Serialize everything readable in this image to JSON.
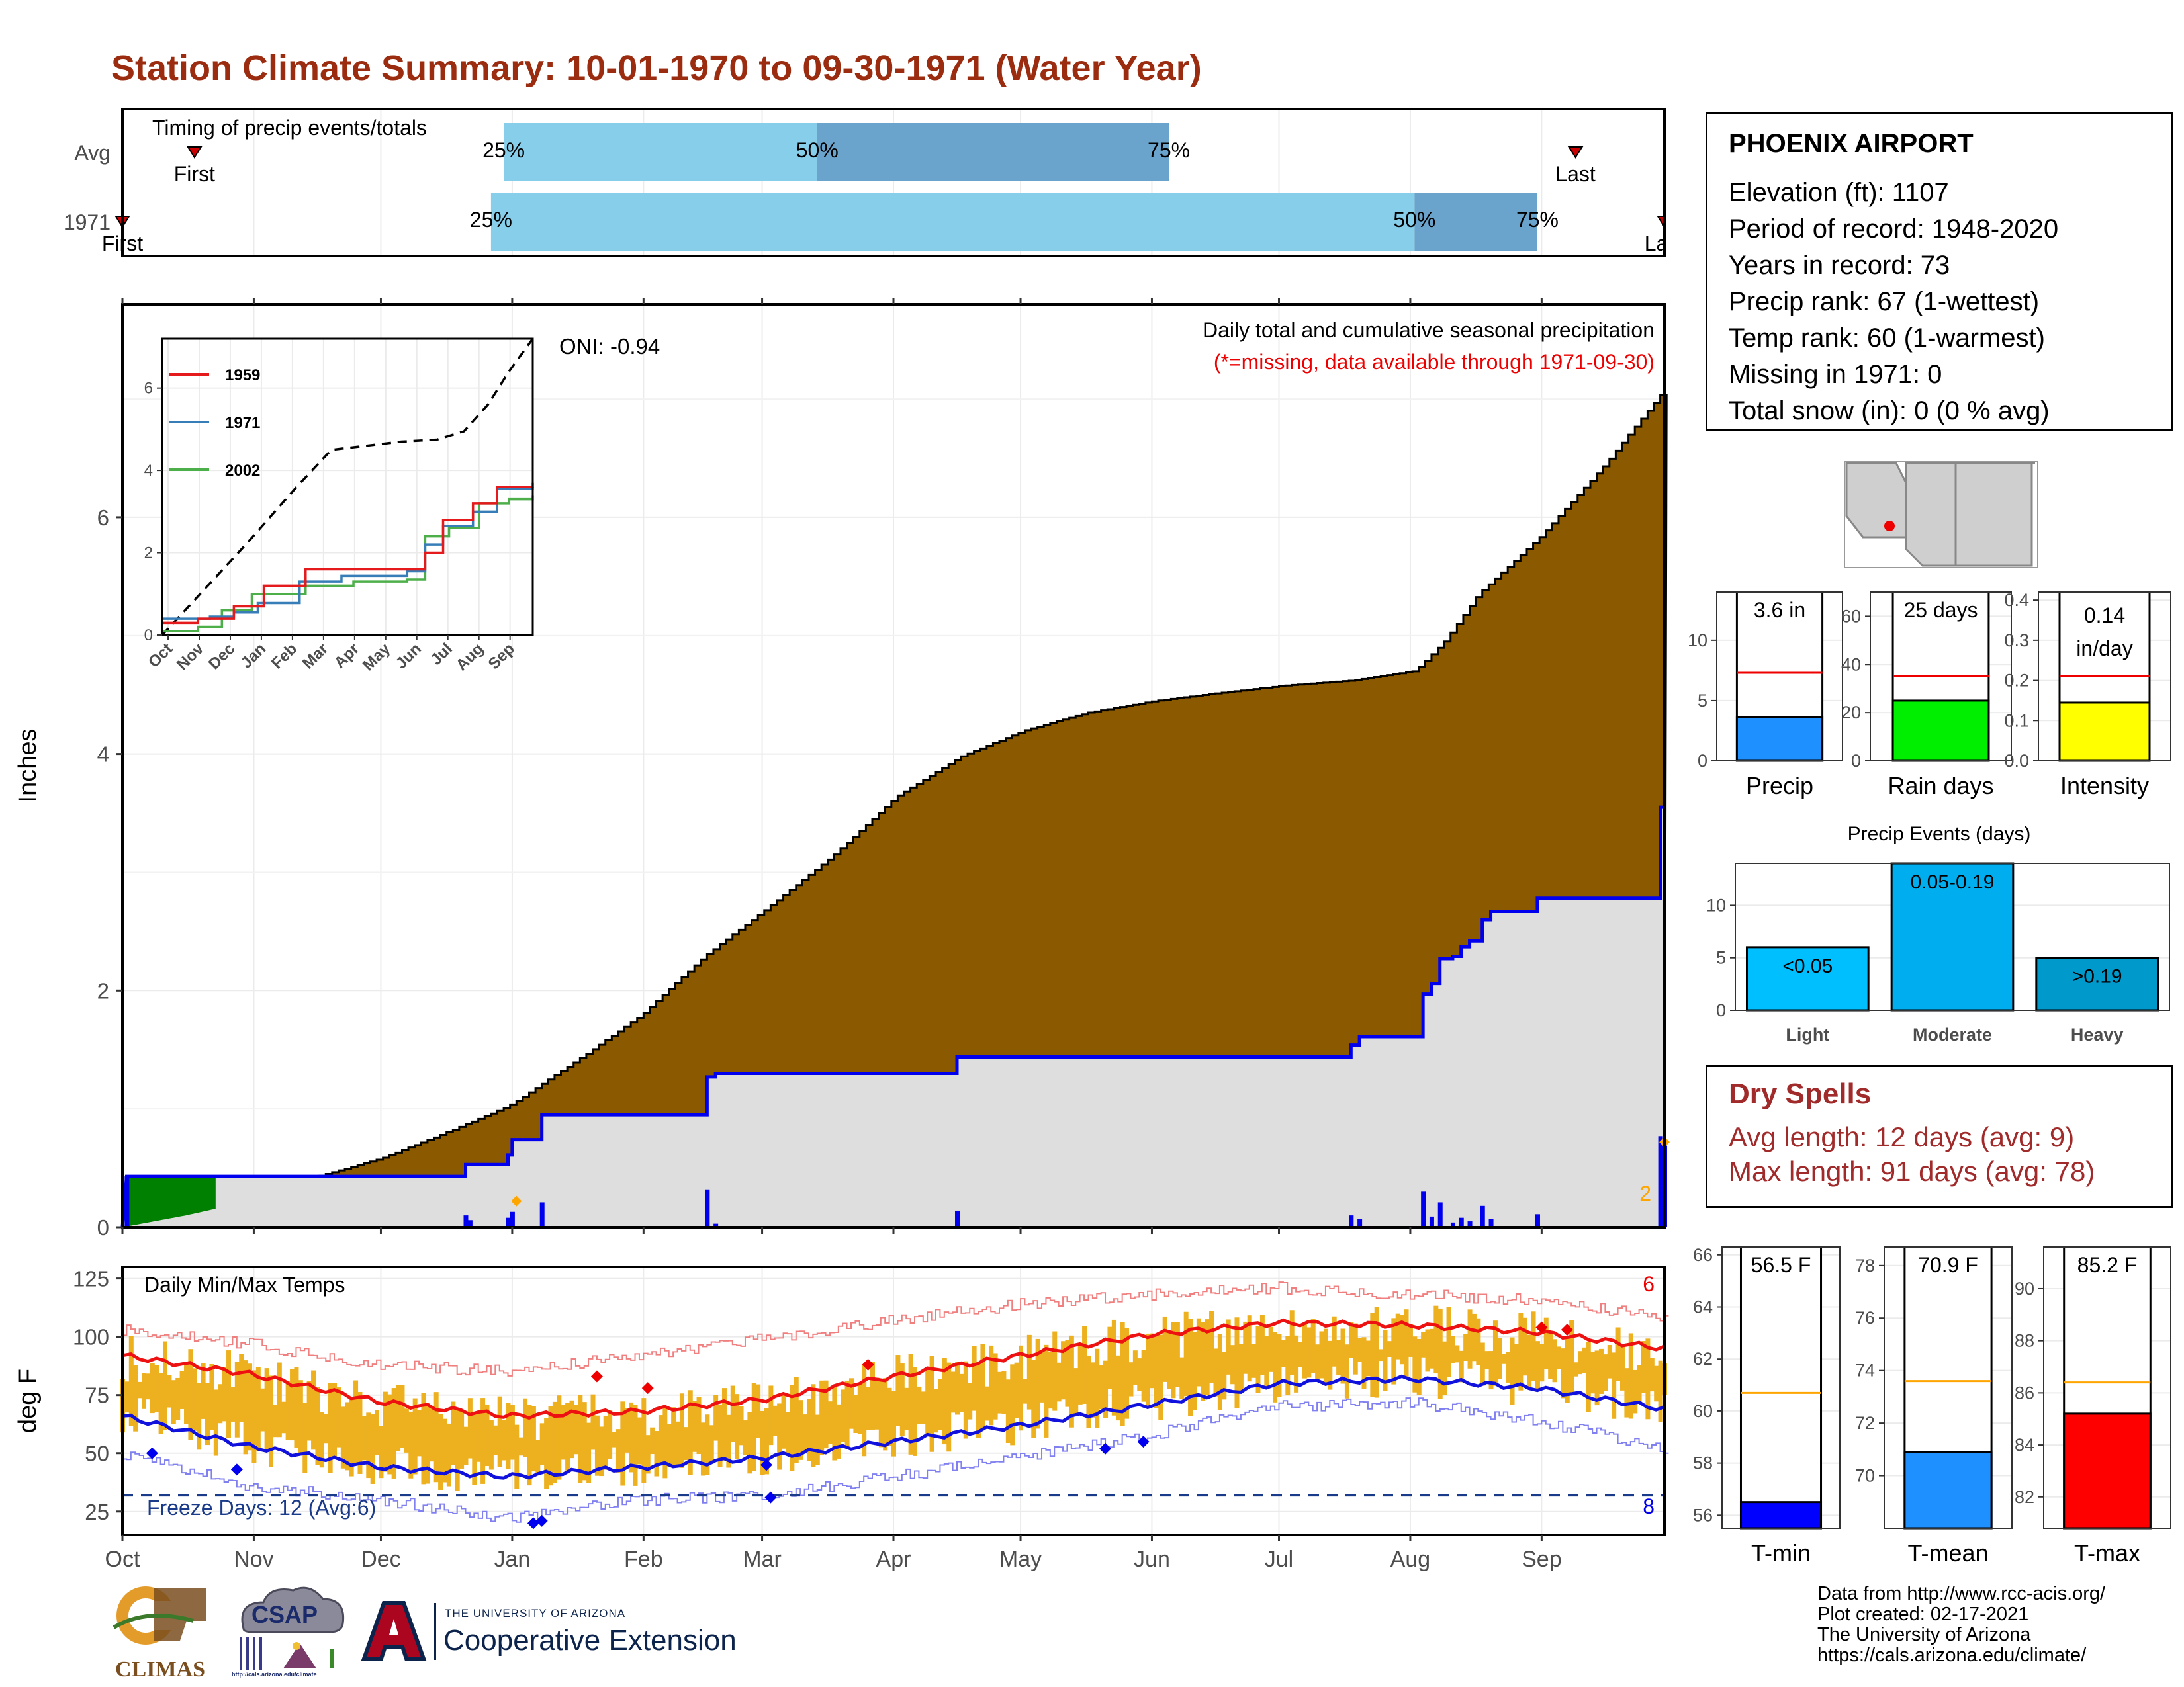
{
  "title": "Station Climate Summary: 10-01-1970 to 09-30-1971 (Water Year)",
  "months": [
    "Oct",
    "Nov",
    "Dec",
    "Jan",
    "Feb",
    "Mar",
    "Apr",
    "May",
    "Jun",
    "Jul",
    "Aug",
    "Sep"
  ],
  "colors": {
    "title": "#9B2C0F",
    "timing_light": "#87CEEB",
    "timing_dark": "#6AA4CC",
    "cumulative_avg": "#8B5A00",
    "cumulative_obs_fill": "#DEDEDE",
    "cumulative_obs_line": "#0000EE",
    "wet_excess": "#008000",
    "temp_range": "#EDB120",
    "tmax_line": "#EE1111",
    "tmin_line": "#1111DD",
    "dry_spells": "#A12A2A"
  },
  "timing": {
    "label": "Timing of precip events/totals",
    "rows": [
      "Avg",
      "1971"
    ],
    "first_label": "First",
    "last_label": "Last",
    "avg": {
      "first_day": 17,
      "p25_day": 90,
      "p50_day": 164,
      "p75_day": 247,
      "last_day": 343
    },
    "obs": {
      "first_day": 0,
      "p25_day": 87,
      "p50_day": 305,
      "p75_day": 334,
      "last_day": 364
    },
    "pct_labels": [
      "25%",
      "50%",
      "75%"
    ]
  },
  "precip_chart": {
    "ylabel": "Inches",
    "yticks": [
      0,
      2,
      4,
      6
    ],
    "ylim": [
      0,
      7.8
    ],
    "oni": "ONI: -0.94",
    "subtitle1": "Daily total and cumulative seasonal precipitation",
    "subtitle2": "(*=missing, data available through 1971-09-30)",
    "end_marker_label": "2",
    "avg_cumulative": [
      [
        0,
        0.0
      ],
      [
        15,
        0.1
      ],
      [
        30,
        0.22
      ],
      [
        45,
        0.42
      ],
      [
        61,
        0.58
      ],
      [
        75,
        0.78
      ],
      [
        91,
        1.02
      ],
      [
        106,
        1.38
      ],
      [
        122,
        1.78
      ],
      [
        137,
        2.28
      ],
      [
        153,
        2.72
      ],
      [
        168,
        3.15
      ],
      [
        183,
        3.65
      ],
      [
        198,
        3.98
      ],
      [
        213,
        4.2
      ],
      [
        228,
        4.35
      ],
      [
        244,
        4.45
      ],
      [
        260,
        4.52
      ],
      [
        275,
        4.58
      ],
      [
        290,
        4.62
      ],
      [
        305,
        4.7
      ],
      [
        312,
        4.95
      ],
      [
        320,
        5.35
      ],
      [
        335,
        5.85
      ],
      [
        350,
        6.45
      ],
      [
        364,
        7.08
      ]
    ],
    "obs_cumulative": [
      [
        0,
        0.0
      ],
      [
        1,
        0.43
      ],
      [
        81,
        0.43
      ],
      [
        81,
        0.53
      ],
      [
        91,
        0.53
      ],
      [
        91,
        0.61
      ],
      [
        92,
        0.61
      ],
      [
        92,
        0.74
      ],
      [
        99,
        0.74
      ],
      [
        99,
        0.95
      ],
      [
        138,
        0.95
      ],
      [
        138,
        1.27
      ],
      [
        140,
        1.27
      ],
      [
        140,
        1.3
      ],
      [
        197,
        1.3
      ],
      [
        197,
        1.44
      ],
      [
        290,
        1.44
      ],
      [
        290,
        1.54
      ],
      [
        292,
        1.54
      ],
      [
        292,
        1.61
      ],
      [
        307,
        1.61
      ],
      [
        307,
        1.97
      ],
      [
        309,
        1.97
      ],
      [
        309,
        2.06
      ],
      [
        311,
        2.06
      ],
      [
        311,
        2.27
      ],
      [
        314,
        2.27
      ],
      [
        314,
        2.29
      ],
      [
        316,
        2.29
      ],
      [
        316,
        2.37
      ],
      [
        318,
        2.37
      ],
      [
        318,
        2.42
      ],
      [
        321,
        2.42
      ],
      [
        321,
        2.6
      ],
      [
        323,
        2.6
      ],
      [
        323,
        2.67
      ],
      [
        334,
        2.67
      ],
      [
        334,
        2.78
      ],
      [
        363,
        2.78
      ],
      [
        363,
        3.55
      ],
      [
        364,
        3.55
      ]
    ],
    "daily_bars": [
      [
        1,
        0.43
      ],
      [
        81,
        0.1
      ],
      [
        82,
        0.06
      ],
      [
        91,
        0.08
      ],
      [
        92,
        0.13
      ],
      [
        99,
        0.21
      ],
      [
        138,
        0.32
      ],
      [
        140,
        0.03
      ],
      [
        197,
        0.14
      ],
      [
        290,
        0.1
      ],
      [
        292,
        0.07
      ],
      [
        307,
        0.3
      ],
      [
        309,
        0.09
      ],
      [
        311,
        0.21
      ],
      [
        314,
        0.04
      ],
      [
        316,
        0.08
      ],
      [
        318,
        0.05
      ],
      [
        321,
        0.18
      ],
      [
        323,
        0.07
      ],
      [
        334,
        0.11
      ],
      [
        363,
        0.77
      ],
      [
        364,
        0.69
      ]
    ],
    "missing_markers": [
      [
        93,
        0.22
      ],
      [
        364,
        0.72
      ]
    ]
  },
  "inset": {
    "years": [
      "1959",
      "1971",
      "2002"
    ],
    "series_colors": [
      "#E41A1C",
      "#377EB8",
      "#4DAF4A"
    ],
    "yticks": [
      0,
      2,
      4,
      6
    ],
    "ylim": [
      0,
      7.2
    ],
    "xlabels": [
      "Oct",
      "Nov",
      "Dec",
      "Jan",
      "Feb",
      "Mar",
      "Apr",
      "May",
      "Jun",
      "Jul",
      "Aug",
      "Sep"
    ],
    "avg_line": [
      [
        0,
        0
      ],
      [
        70,
        1.1
      ],
      [
        140,
        2.2
      ],
      [
        225,
        3.6
      ],
      [
        283,
        4.5
      ],
      [
        400,
        4.7
      ],
      [
        460,
        4.75
      ],
      [
        505,
        4.95
      ],
      [
        545,
        5.6
      ],
      [
        580,
        6.4
      ],
      [
        620,
        7.2
      ]
    ],
    "s1959": [
      [
        0,
        0.3
      ],
      [
        60,
        0.4
      ],
      [
        120,
        0.7
      ],
      [
        170,
        1.2
      ],
      [
        240,
        1.6
      ],
      [
        300,
        1.6
      ],
      [
        410,
        1.6
      ],
      [
        440,
        2.0
      ],
      [
        470,
        2.8
      ],
      [
        520,
        3.2
      ],
      [
        560,
        3.6
      ],
      [
        620,
        3.7
      ]
    ],
    "s1971": [
      [
        0,
        0.4
      ],
      [
        80,
        0.45
      ],
      [
        120,
        0.55
      ],
      [
        160,
        0.78
      ],
      [
        230,
        1.3
      ],
      [
        300,
        1.44
      ],
      [
        410,
        1.55
      ],
      [
        440,
        2.2
      ],
      [
        470,
        2.65
      ],
      [
        520,
        3.0
      ],
      [
        560,
        3.55
      ],
      [
        620,
        3.6
      ]
    ],
    "s2002": [
      [
        0,
        0.1
      ],
      [
        60,
        0.2
      ],
      [
        100,
        0.6
      ],
      [
        150,
        1.0
      ],
      [
        240,
        1.2
      ],
      [
        320,
        1.3
      ],
      [
        410,
        1.35
      ],
      [
        440,
        2.4
      ],
      [
        480,
        2.6
      ],
      [
        530,
        3.2
      ],
      [
        580,
        3.3
      ],
      [
        620,
        3.4
      ]
    ]
  },
  "temps": {
    "label": "Daily Min/Max Temps",
    "ylabel": "deg F",
    "yticks": [
      25,
      50,
      75,
      100,
      125
    ],
    "ylim": [
      15,
      130
    ],
    "freeze_label": "Freeze Days: 12 (Avg:6)",
    "freeze_line": 32,
    "record_high_count": "6",
    "record_low_count": "8",
    "avg_tmax": [
      [
        0,
        92
      ],
      [
        30,
        84
      ],
      [
        61,
        72
      ],
      [
        91,
        66
      ],
      [
        122,
        68
      ],
      [
        151,
        73
      ],
      [
        182,
        83
      ],
      [
        212,
        92
      ],
      [
        243,
        101
      ],
      [
        273,
        106
      ],
      [
        304,
        105
      ],
      [
        334,
        102
      ],
      [
        364,
        95
      ]
    ],
    "avg_tmin": [
      [
        0,
        66
      ],
      [
        30,
        53
      ],
      [
        61,
        44
      ],
      [
        91,
        40
      ],
      [
        122,
        44
      ],
      [
        151,
        48
      ],
      [
        182,
        55
      ],
      [
        212,
        62
      ],
      [
        243,
        71
      ],
      [
        273,
        80
      ],
      [
        304,
        82
      ],
      [
        334,
        78
      ],
      [
        364,
        69
      ]
    ],
    "rec_high": [
      [
        0,
        103
      ],
      [
        30,
        97
      ],
      [
        61,
        88
      ],
      [
        91,
        85
      ],
      [
        122,
        92
      ],
      [
        151,
        99
      ],
      [
        182,
        107
      ],
      [
        212,
        114
      ],
      [
        243,
        118
      ],
      [
        273,
        121
      ],
      [
        304,
        118
      ],
      [
        334,
        116
      ],
      [
        364,
        108
      ]
    ],
    "rec_low": [
      [
        0,
        50
      ],
      [
        30,
        36
      ],
      [
        61,
        30
      ],
      [
        91,
        22
      ],
      [
        122,
        30
      ],
      [
        151,
        32
      ],
      [
        182,
        40
      ],
      [
        212,
        48
      ],
      [
        243,
        58
      ],
      [
        273,
        70
      ],
      [
        304,
        72
      ],
      [
        334,
        64
      ],
      [
        364,
        52
      ]
    ]
  },
  "station": {
    "name": "PHOENIX AIRPORT",
    "lines": [
      "Elevation (ft): 1107",
      "Period of record: 1948-2020",
      "Years in record: 73",
      "Precip rank: 67 (1-wettest)",
      "Temp rank: 60 (1-warmest)",
      "Missing in 1971: 0",
      "Total snow (in): 0 (0 % avg)"
    ]
  },
  "precip_summary": [
    {
      "label": "Precip",
      "value_text": "3.6 in",
      "value": 3.6,
      "avg": 7.3,
      "ymax": 14,
      "yticks": [
        0,
        5,
        10
      ],
      "color": "#1E90FF"
    },
    {
      "label": "Rain days",
      "value_text": "25 days",
      "value": 25,
      "avg": 35,
      "ymax": 70,
      "yticks": [
        0,
        20,
        40,
        60
      ],
      "color": "#00EE00"
    },
    {
      "label": "Intensity",
      "value_text": "0.14 in/day",
      "value": 0.145,
      "avg": 0.21,
      "ymax": 0.42,
      "yticks": [
        "0.0",
        "0.1",
        "0.2",
        "0.3",
        "0.4"
      ],
      "color": "#FFFF00"
    }
  ],
  "precip_events": {
    "title": "Precip Events (days)",
    "yticks": [
      0,
      5,
      10
    ],
    "ymax": 14,
    "bars": [
      {
        "category": "Light",
        "label": "<0.05",
        "value": 6,
        "color": "#00BFFF"
      },
      {
        "category": "Moderate",
        "label": "0.05-0.19",
        "value": 14,
        "color": "#00AEEF"
      },
      {
        "category": "Heavy",
        "label": ">0.19",
        "value": 5,
        "color": "#0099CC"
      }
    ]
  },
  "dry_spells": {
    "title": "Dry Spells",
    "avg_length": "Avg length: 12 days (avg: 9)",
    "max_length": "Max length: 91 days (avg: 78)"
  },
  "temp_summary": [
    {
      "label": "T-min",
      "value_text": "56.5 F",
      "value": 56.5,
      "avg": 60.7,
      "ymin": 55.5,
      "ymax": 66.3,
      "yticks": [
        56,
        58,
        60,
        62,
        64,
        66
      ],
      "color": "#0000FF"
    },
    {
      "label": "T-mean",
      "value_text": "70.9 F",
      "value": 70.9,
      "avg": 73.6,
      "ymin": 68.0,
      "ymax": 78.7,
      "yticks": [
        70,
        72,
        74,
        76,
        78
      ],
      "color": "#1E90FF"
    },
    {
      "label": "T-max",
      "value_text": "85.2 F",
      "value": 85.2,
      "avg": 86.4,
      "ymin": 80.8,
      "ymax": 91.6,
      "yticks": [
        82,
        84,
        86,
        88,
        90
      ],
      "color": "#FF0000"
    }
  ],
  "footer": {
    "lines": [
      "Data from http://www.rcc-acis.org/",
      "Plot created: 02-17-2021",
      "The University of Arizona",
      "https://cals.arizona.edu/climate/"
    ],
    "climas": "CLIMAS",
    "csap": "CSAP",
    "csap_url": "http://cals.arizona.edu/climate",
    "ua_small": "THE UNIVERSITY OF ARIZONA",
    "ua_big": "Cooperative Extension"
  }
}
